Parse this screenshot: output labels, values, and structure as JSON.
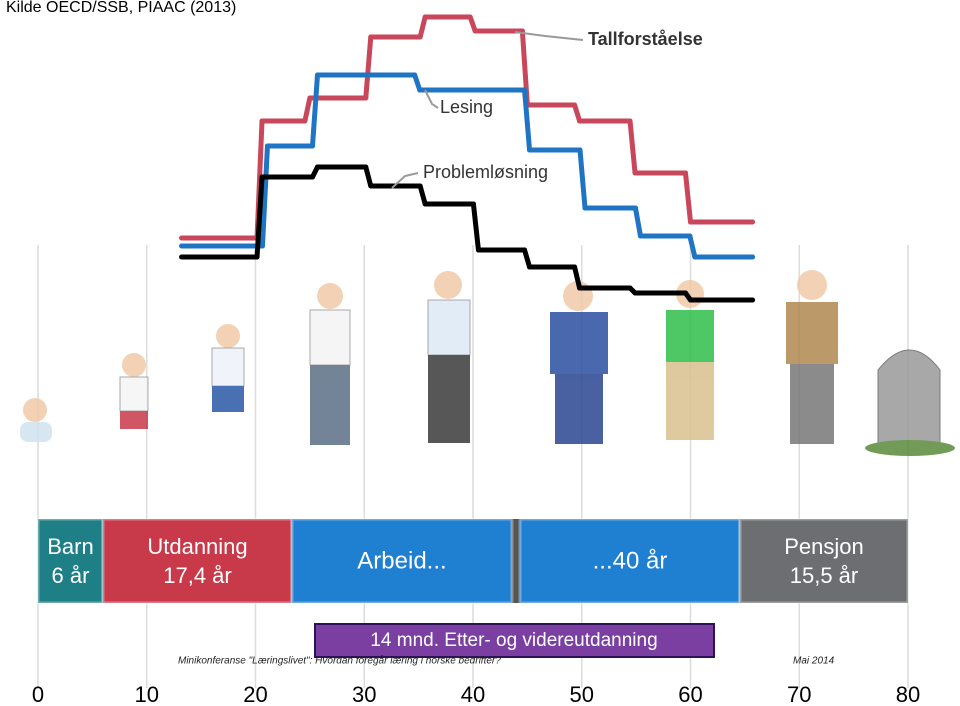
{
  "source": "Kilde OECD/SSB, PIAAC (2013)",
  "chart_data": {
    "type": "line",
    "xlim": [
      0,
      80
    ],
    "xticks": [
      0,
      10,
      20,
      30,
      40,
      50,
      60,
      70,
      80
    ],
    "ylim": [
      0,
      300
    ],
    "grid": true,
    "series": [
      {
        "name": "Tallforståelse",
        "color": "#c8475a",
        "x": [
          13.2,
          20.6,
          25,
          30.6,
          35.6,
          40.2,
          45,
          49.8,
          54.9,
          60,
          65.7
        ],
        "values": [
          62,
          179,
          202,
          263,
          283,
          269,
          195,
          179,
          127,
          78,
          78
        ]
      },
      {
        "name": "Lesing",
        "color": "#1f74c4",
        "x": [
          13.2,
          21.1,
          25.7,
          35.1,
          45.2,
          50.3,
          55.4,
          60.4,
          65.7
        ],
        "values": [
          54,
          154,
          225,
          210,
          150,
          92,
          64,
          43,
          43
        ]
      },
      {
        "name": "Problemløsning",
        "color": "#000000",
        "x": [
          13.2,
          20.6,
          25.7,
          30.6,
          35.6,
          40.5,
          45.2,
          49.8,
          54.9,
          60,
          65.7
        ],
        "values": [
          43,
          123,
          133,
          114,
          96,
          50,
          33,
          12,
          7,
          0,
          0
        ]
      }
    ]
  },
  "phases": [
    {
      "label": "Barn",
      "duration": "6 år"
    },
    {
      "label": "Utdanning",
      "duration": "17,4 år"
    },
    {
      "label": "Arbeid..."
    },
    {
      "label": "...40 år"
    },
    {
      "label": "Pensjon",
      "duration": "15,5 år"
    }
  ],
  "banner": "14 mnd. Etter- og videreutdanning",
  "footer": {
    "left": "Minikonferanse \"Læringslivet\": Hvordan foregår læring i norske bedrifter?",
    "right": "Mai 2014"
  }
}
